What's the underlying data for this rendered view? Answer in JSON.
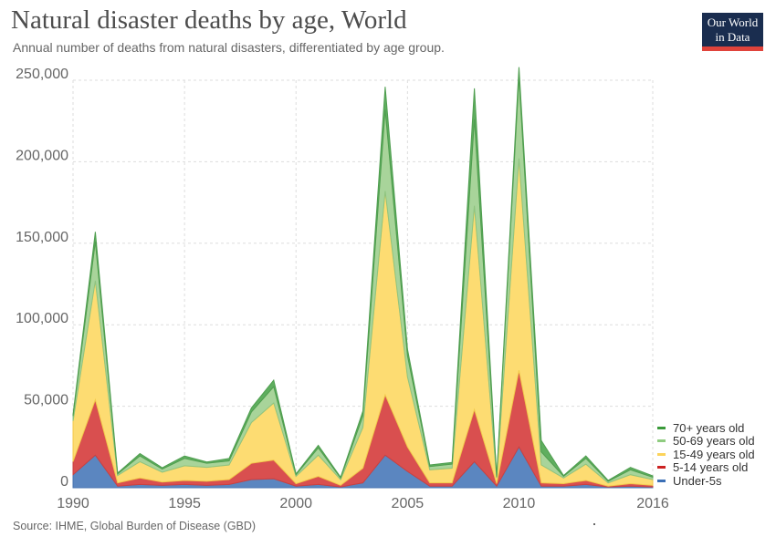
{
  "header": {
    "title": "Natural disaster deaths by age, World",
    "subtitle": "Annual number of deaths from natural disasters, differentiated by age group.",
    "logo_line1": "Our World",
    "logo_line2": "in Data"
  },
  "footer": {
    "source": "Source: IHME, Global Burden of Disease (GBD)"
  },
  "colors": {
    "under5": "#5b86c0",
    "age5_14": "#d94f4f",
    "age15_49": "#fddc72",
    "age50_69": "#a8d49a",
    "age70plus": "#5fae5f",
    "logo_bg": "#1a2d4f",
    "logo_bar": "#e0433b"
  },
  "chart_data": {
    "type": "area",
    "stacked": true,
    "title": "Natural disaster deaths by age, World",
    "xlabel": "",
    "ylabel": "",
    "xlim": [
      1990,
      2016
    ],
    "ylim": [
      0,
      250000
    ],
    "x_ticks": [
      "1990",
      "1995",
      "2000",
      "2005",
      "2010",
      "2016"
    ],
    "y_ticks": [
      "0",
      "50,000",
      "100,000",
      "150,000",
      "200,000",
      "250,000"
    ],
    "grid": true,
    "legend_position": "bottom-right",
    "x": [
      1990,
      1991,
      1992,
      1993,
      1994,
      1995,
      1996,
      1997,
      1998,
      1999,
      2000,
      2001,
      2002,
      2003,
      2004,
      2005,
      2006,
      2007,
      2008,
      2009,
      2010,
      2011,
      2012,
      2013,
      2014,
      2015,
      2016
    ],
    "series": [
      {
        "name": "Under-5s",
        "color": "#5b86c0",
        "values": [
          8000,
          20000,
          1000,
          2000,
          1500,
          2000,
          1500,
          2000,
          5000,
          5500,
          1000,
          2000,
          500,
          3000,
          20000,
          10000,
          1000,
          1000,
          16000,
          1000,
          25000,
          1000,
          1000,
          2000,
          500,
          1000,
          500
        ]
      },
      {
        "name": "5-14 years old",
        "color": "#d94f4f",
        "values": [
          8000,
          34000,
          2000,
          4000,
          2000,
          2500,
          2500,
          3000,
          10000,
          11500,
          1500,
          5000,
          1000,
          9000,
          37000,
          15000,
          2000,
          2000,
          32000,
          1500,
          47000,
          2000,
          1500,
          2500,
          500,
          1500,
          1000
        ]
      },
      {
        "name": "15-49 years old",
        "color": "#fddc72",
        "values": [
          25000,
          73000,
          4500,
          10000,
          6000,
          9000,
          8500,
          9000,
          25000,
          35000,
          4500,
          13000,
          3500,
          25000,
          125000,
          43000,
          8000,
          9000,
          125000,
          3500,
          130000,
          11000,
          3500,
          10000,
          2000,
          5500,
          3500
        ]
      },
      {
        "name": "50-69 years old",
        "color": "#a8d49a",
        "values": [
          3000,
          24000,
          1000,
          3500,
          2000,
          4500,
          2500,
          2500,
          6500,
          10000,
          1000,
          4500,
          1000,
          7000,
          50000,
          13000,
          2000,
          2500,
          53000,
          500,
          50000,
          8000,
          1000,
          3500,
          1000,
          3000,
          1500
        ]
      },
      {
        "name": "70+ years old",
        "color": "#5fae5f",
        "values": [
          1000,
          6000,
          500,
          1500,
          800,
          1500,
          800,
          1500,
          2500,
          4000,
          500,
          1500,
          500,
          3000,
          14000,
          4000,
          1000,
          1000,
          19000,
          200,
          6000,
          7000,
          500,
          1500,
          500,
          1500,
          800
        ]
      }
    ]
  }
}
